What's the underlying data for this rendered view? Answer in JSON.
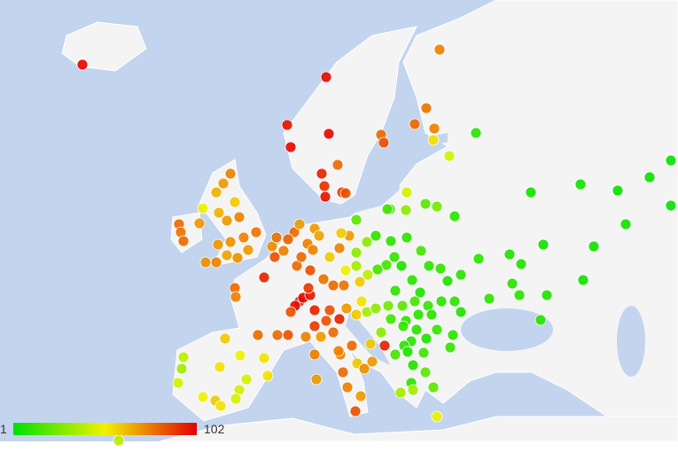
{
  "map": {
    "ocean_color": "#c3d4ee",
    "land_color": "#f4f4f4",
    "border_color": "#ffffff"
  },
  "legend": {
    "min_label": "1",
    "max_label": "102",
    "min": 1,
    "max": 102,
    "colors": [
      "#00e000",
      "#f2f200",
      "#e40000"
    ]
  },
  "markers": [
    {
      "v": 100
    },
    {
      "v": 100
    },
    {
      "v": 98
    },
    {
      "v": 100
    },
    {
      "v": 100
    },
    {
      "v": 95
    },
    {
      "v": 92
    },
    {
      "v": 98
    },
    {
      "v": 90
    },
    {
      "v": 80
    },
    {
      "v": 85
    },
    {
      "v": 75
    },
    {
      "v": 78
    },
    {
      "v": 80
    },
    {
      "v": 75
    },
    {
      "v": 55
    },
    {
      "v": 80
    },
    {
      "v": 85
    },
    {
      "v": 10
    },
    {
      "v": 45
    },
    {
      "v": 45
    },
    {
      "v": 30
    },
    {
      "v": 20
    },
    {
      "v": 25
    },
    {
      "v": 15
    },
    {
      "v": 10
    },
    {
      "v": 5
    },
    {
      "v": 5
    },
    {
      "v": 3
    },
    {
      "v": 3
    },
    {
      "v": 3
    },
    {
      "v": 3
    },
    {
      "v": 5
    },
    {
      "v": 5
    },
    {
      "v": 5
    },
    {
      "v": 8
    },
    {
      "v": 8
    },
    {
      "v": 10
    },
    {
      "v": 5
    },
    {
      "v": 8
    },
    {
      "v": 10
    },
    {
      "v": 10
    },
    {
      "v": 10
    },
    {
      "v": 10
    },
    {
      "v": 75
    },
    {
      "v": 70
    },
    {
      "v": 65
    },
    {
      "v": 60
    },
    {
      "v": 50
    },
    {
      "v": 70
    },
    {
      "v": 75
    },
    {
      "v": 70
    },
    {
      "v": 72
    },
    {
      "v": 75
    },
    {
      "v": 78
    },
    {
      "v": 70
    },
    {
      "v": 72
    },
    {
      "v": 68
    },
    {
      "v": 75
    },
    {
      "v": 72
    },
    {
      "v": 80
    },
    {
      "v": 78
    },
    {
      "v": 80
    },
    {
      "v": 70
    },
    {
      "v": 65
    },
    {
      "v": 95
    },
    {
      "v": 80
    },
    {
      "v": 75
    },
    {
      "v": 85
    },
    {
      "v": 80
    },
    {
      "v": 75
    },
    {
      "v": 75
    },
    {
      "v": 80
    },
    {
      "v": 72
    },
    {
      "v": 78
    },
    {
      "v": 82
    },
    {
      "v": 95
    },
    {
      "v": 100
    },
    {
      "v": 100
    },
    {
      "v": 98
    },
    {
      "v": 90
    },
    {
      "v": 95
    },
    {
      "v": 85
    },
    {
      "v": 90
    },
    {
      "v": 80
    },
    {
      "v": 80
    },
    {
      "v": 85
    },
    {
      "v": 75
    },
    {
      "v": 70
    },
    {
      "v": 70
    },
    {
      "v": 68
    },
    {
      "v": 75
    },
    {
      "v": 80
    },
    {
      "v": 85
    },
    {
      "v": 78
    },
    {
      "v": 80
    },
    {
      "v": 78
    },
    {
      "v": 60
    },
    {
      "v": 75
    },
    {
      "v": 70
    },
    {
      "v": 20
    },
    {
      "v": 60
    },
    {
      "v": 30
    },
    {
      "v": 30
    },
    {
      "v": 35
    },
    {
      "v": 50
    },
    {
      "v": 60
    },
    {
      "v": 40
    },
    {
      "v": 95
    },
    {
      "v": 85
    },
    {
      "v": 85
    },
    {
      "v": 80
    },
    {
      "v": 70
    },
    {
      "v": 70
    },
    {
      "v": 60
    },
    {
      "v": 55
    },
    {
      "v": 15
    },
    {
      "v": 10
    },
    {
      "v": 10
    },
    {
      "v": 10
    },
    {
      "v": 15
    },
    {
      "v": 12
    },
    {
      "v": 15
    },
    {
      "v": 15
    },
    {
      "v": 8
    },
    {
      "v": 10
    },
    {
      "v": 12
    },
    {
      "v": 10
    },
    {
      "v": 10
    },
    {
      "v": 8
    },
    {
      "v": 8
    },
    {
      "v": 10
    },
    {
      "v": 35
    },
    {
      "v": 30
    },
    {
      "v": 25
    },
    {
      "v": 20
    },
    {
      "v": 15
    },
    {
      "v": 12
    },
    {
      "v": 10
    },
    {
      "v": 10
    },
    {
      "v": 8
    },
    {
      "v": 10
    },
    {
      "v": 10
    },
    {
      "v": 10
    },
    {
      "v": 15
    },
    {
      "v": 12
    },
    {
      "v": 10
    },
    {
      "v": 12
    },
    {
      "v": 10
    },
    {
      "v": 8
    },
    {
      "v": 10
    },
    {
      "v": 10
    },
    {
      "v": 15
    },
    {
      "v": 8
    },
    {
      "v": 15
    },
    {
      "v": 12
    },
    {
      "v": 95
    },
    {
      "v": 30
    },
    {
      "v": 60
    },
    {
      "v": 70
    },
    {
      "v": 80
    },
    {
      "v": 75
    },
    {
      "v": 60
    },
    {
      "v": 80
    },
    {
      "v": 72
    },
    {
      "v": 8
    },
    {
      "v": 20
    },
    {
      "v": 10
    },
    {
      "v": 35
    },
    {
      "v": 20
    },
    {
      "v": 35
    },
    {
      "v": 75
    },
    {
      "v": 75
    },
    {
      "v": 70
    },
    {
      "v": 85
    },
    {
      "v": 70
    },
    {
      "v": 75
    },
    {
      "v": 60
    },
    {
      "v": 50
    },
    {
      "v": 55
    },
    {
      "v": 55
    },
    {
      "v": 40
    },
    {
      "v": 35
    },
    {
      "v": 45
    },
    {
      "v": 50
    },
    {
      "v": 60
    },
    {
      "v": 55
    },
    {
      "v": 45
    },
    {
      "v": 45
    },
    {
      "v": 55
    },
    {
      "v": 45
    },
    {
      "v": 50
    },
    {
      "v": 40
    }
  ]
}
